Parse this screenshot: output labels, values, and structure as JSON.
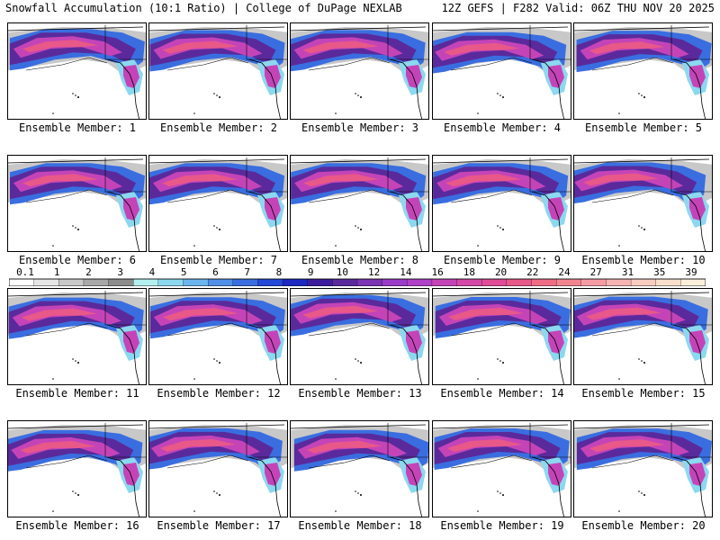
{
  "header": {
    "left": "Snowfall Accumulation (10:1 Ratio) | College of DuPage NEXLAB",
    "right": "12Z GEFS | F282 Valid: 06Z THU NOV 20 2025"
  },
  "members": [
    "Ensemble Member: 1",
    "Ensemble Member: 2",
    "Ensemble Member: 3",
    "Ensemble Member: 4",
    "Ensemble Member: 5",
    "Ensemble Member: 6",
    "Ensemble Member: 7",
    "Ensemble Member: 8",
    "Ensemble Member: 9",
    "Ensemble Member: 10",
    "Ensemble Member: 11",
    "Ensemble Member: 12",
    "Ensemble Member: 13",
    "Ensemble Member: 14",
    "Ensemble Member: 15",
    "Ensemble Member: 16",
    "Ensemble Member: 17",
    "Ensemble Member: 18",
    "Ensemble Member: 19",
    "Ensemble Member: 20"
  ],
  "legend": {
    "ticks": [
      "0.1",
      "1",
      "2",
      "3",
      "4",
      "5",
      "6",
      "7",
      "8",
      "9",
      "10",
      "12",
      "14",
      "16",
      "18",
      "20",
      "22",
      "24",
      "27",
      "31",
      "35",
      "39"
    ],
    "colors": [
      "#ffffff",
      "#e6e6e6",
      "#c8c8c8",
      "#a8a8a8",
      "#8c8c8c",
      "#b4f0f0",
      "#8cd8f0",
      "#6cb4ec",
      "#5090e8",
      "#3a6ee0",
      "#2448d8",
      "#1c28c0",
      "#3c1c9c",
      "#5a2a9c",
      "#7a34b4",
      "#9a3cc8",
      "#b040c8",
      "#c444b8",
      "#d448a8",
      "#e04c98",
      "#e85888",
      "#ee6c84",
      "#f28490",
      "#f49ca4",
      "#f6b4b4",
      "#f8ccc0",
      "#fae0cc",
      "#fcf0dc"
    ]
  }
}
